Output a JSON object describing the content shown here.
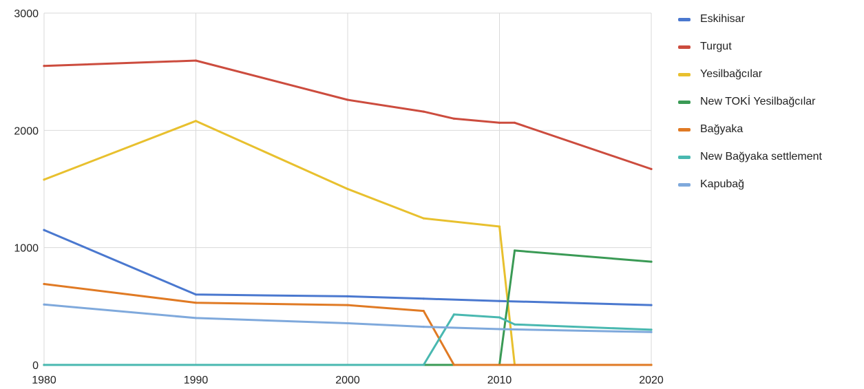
{
  "chart_data": {
    "type": "line",
    "title": "",
    "xlabel": "",
    "ylabel": "",
    "xlim": [
      1980,
      2020
    ],
    "ylim": [
      0,
      3000
    ],
    "x_ticks": [
      "1980",
      "1990",
      "2000",
      "2010",
      "2020"
    ],
    "y_ticks": [
      "0",
      "1000",
      "2000",
      "3000"
    ],
    "grid": true,
    "legend_position": "right",
    "series": [
      {
        "name": "Eskihisar",
        "color": "#4a78cf",
        "points": [
          [
            1980,
            1150
          ],
          [
            1990,
            600
          ],
          [
            2000,
            585
          ],
          [
            2005,
            565
          ],
          [
            2010,
            545
          ],
          [
            2020,
            510
          ]
        ]
      },
      {
        "name": "Turgut",
        "color": "#cc4c3e",
        "points": [
          [
            1980,
            2550
          ],
          [
            1990,
            2595
          ],
          [
            2000,
            2260
          ],
          [
            2005,
            2160
          ],
          [
            2007,
            2100
          ],
          [
            2010,
            2065
          ],
          [
            2011,
            2065
          ],
          [
            2020,
            1670
          ]
        ]
      },
      {
        "name": "Yesilbağcılar",
        "color": "#e8c02e",
        "points": [
          [
            1980,
            1580
          ],
          [
            1990,
            2080
          ],
          [
            2000,
            1500
          ],
          [
            2005,
            1250
          ],
          [
            2010,
            1180
          ],
          [
            2011,
            0
          ],
          [
            2020,
            0
          ]
        ]
      },
      {
        "name": "New TOKİ Yesilbağcılar",
        "color": "#3a9a55",
        "points": [
          [
            1980,
            0
          ],
          [
            2010,
            0
          ],
          [
            2011,
            975
          ],
          [
            2020,
            880
          ]
        ]
      },
      {
        "name": "Bağyaka",
        "color": "#e07a24",
        "points": [
          [
            1980,
            690
          ],
          [
            1990,
            530
          ],
          [
            2000,
            510
          ],
          [
            2005,
            460
          ],
          [
            2007,
            0
          ],
          [
            2020,
            0
          ]
        ]
      },
      {
        "name": "New Bağyaka settlement",
        "color": "#49b8b0",
        "points": [
          [
            1980,
            0
          ],
          [
            2005,
            0
          ],
          [
            2007,
            430
          ],
          [
            2010,
            405
          ],
          [
            2011,
            345
          ],
          [
            2020,
            300
          ]
        ]
      },
      {
        "name": "Kapubağ",
        "color": "#7fa9dc",
        "points": [
          [
            1980,
            515
          ],
          [
            1990,
            400
          ],
          [
            2000,
            355
          ],
          [
            2005,
            325
          ],
          [
            2010,
            305
          ],
          [
            2020,
            280
          ]
        ]
      }
    ]
  }
}
